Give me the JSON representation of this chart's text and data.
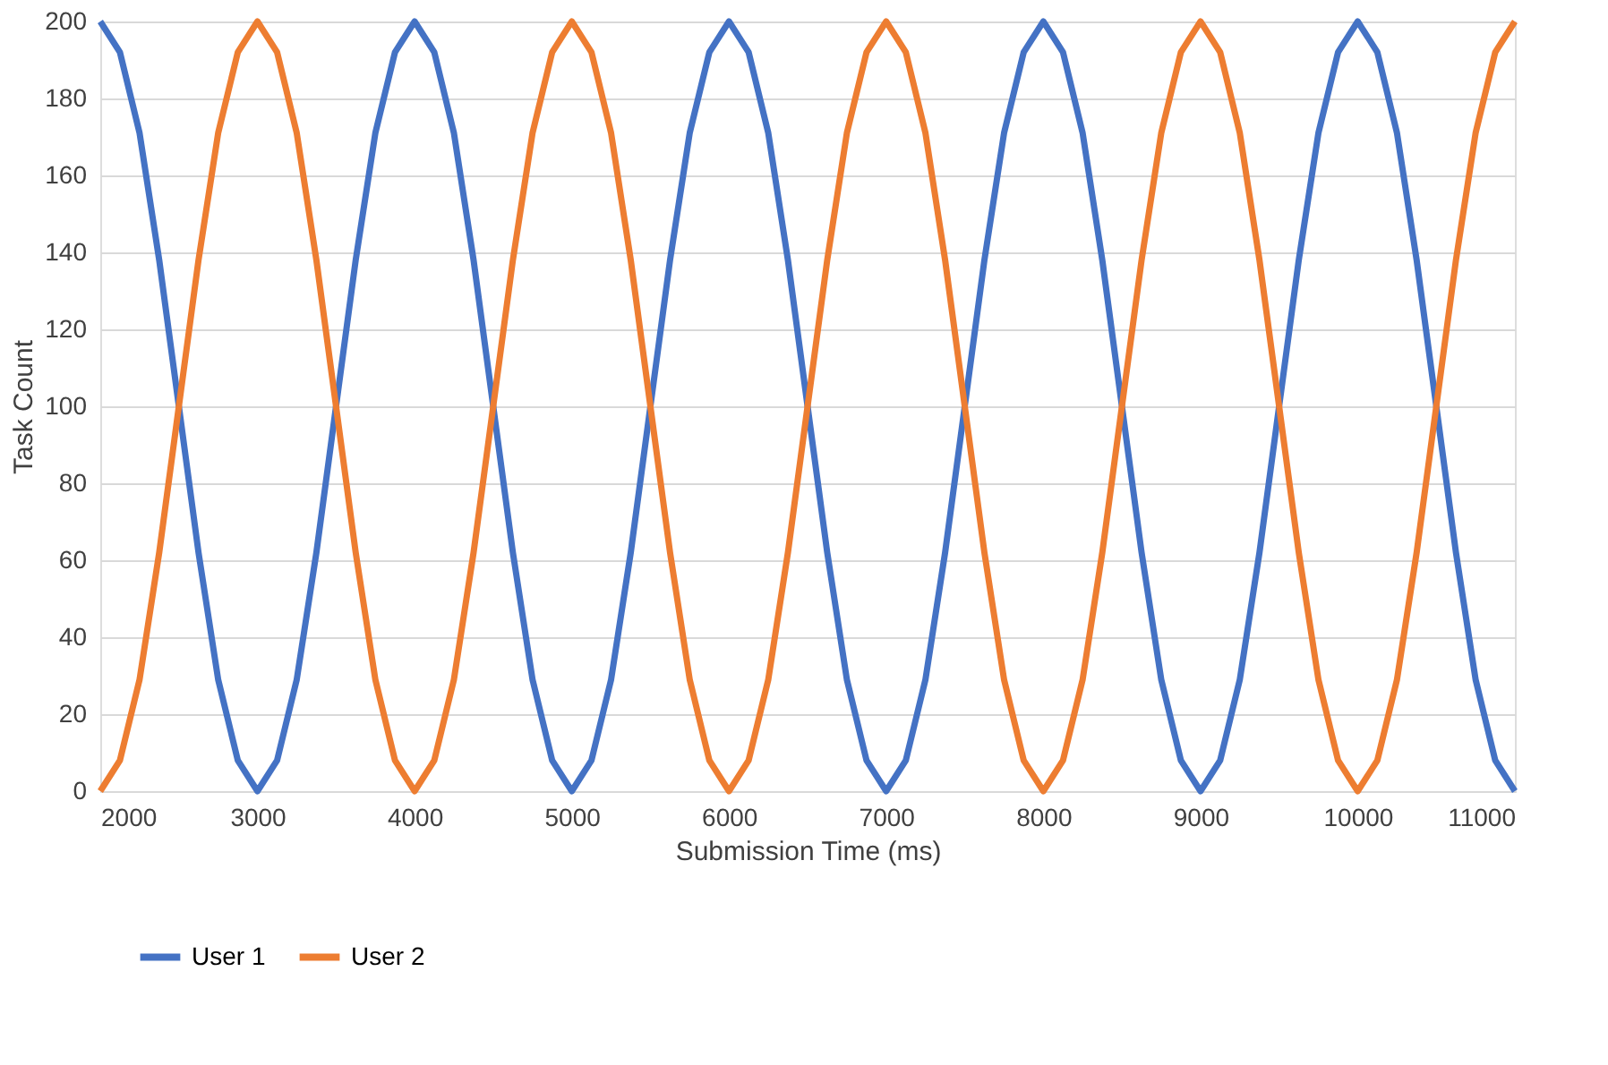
{
  "chart_data": {
    "type": "line",
    "xlabel": "Submission Time (ms)",
    "ylabel": "Task Count",
    "x": [
      2000,
      2125,
      2250,
      2375,
      2500,
      2625,
      2750,
      2875,
      3000,
      3125,
      3250,
      3375,
      3500,
      3625,
      3750,
      3875,
      4000,
      4125,
      4250,
      4375,
      4500,
      4625,
      4750,
      4875,
      5000,
      5125,
      5250,
      5375,
      5500,
      5625,
      5750,
      5875,
      6000,
      6125,
      6250,
      6375,
      6500,
      6625,
      6750,
      6875,
      7000,
      7125,
      7250,
      7375,
      7500,
      7625,
      7750,
      7875,
      8000,
      8125,
      8250,
      8375,
      8500,
      8625,
      8750,
      8875,
      9000,
      9125,
      9250,
      9375,
      9500,
      9625,
      9750,
      9875,
      10000,
      10125,
      10250,
      10375,
      10500,
      10625,
      10750,
      10875,
      11000
    ],
    "series": [
      {
        "name": "User 1",
        "color": "#4472c4",
        "values": [
          200,
          192,
          171,
          138,
          100,
          62,
          29,
          8,
          0,
          8,
          29,
          62,
          100,
          138,
          171,
          192,
          200,
          192,
          171,
          138,
          100,
          62,
          29,
          8,
          0,
          8,
          29,
          62,
          100,
          138,
          171,
          192,
          200,
          192,
          171,
          138,
          100,
          62,
          29,
          8,
          0,
          8,
          29,
          62,
          100,
          138,
          171,
          192,
          200,
          192,
          171,
          138,
          100,
          62,
          29,
          8,
          0,
          8,
          29,
          62,
          100,
          138,
          171,
          192,
          200,
          192,
          171,
          138,
          100,
          62,
          29,
          8,
          0
        ]
      },
      {
        "name": "User 2",
        "color": "#ed7d31",
        "values": [
          0,
          8,
          29,
          62,
          100,
          138,
          171,
          192,
          200,
          192,
          171,
          138,
          100,
          62,
          29,
          8,
          0,
          8,
          29,
          62,
          100,
          138,
          171,
          192,
          200,
          192,
          171,
          138,
          100,
          62,
          29,
          8,
          0,
          8,
          29,
          62,
          100,
          138,
          171,
          192,
          200,
          192,
          171,
          138,
          100,
          62,
          29,
          8,
          0,
          8,
          29,
          62,
          100,
          138,
          171,
          192,
          200,
          192,
          171,
          138,
          100,
          62,
          29,
          8,
          0,
          8,
          29,
          62,
          100,
          138,
          171,
          192,
          200
        ]
      }
    ],
    "xlim": [
      2000,
      11000
    ],
    "xticks": [
      2000,
      3000,
      4000,
      5000,
      6000,
      7000,
      8000,
      9000,
      10000,
      11000
    ],
    "ylim": [
      0,
      200
    ],
    "yticks": [
      0,
      20,
      40,
      60,
      80,
      100,
      120,
      140,
      160,
      180,
      200
    ],
    "grid": "y",
    "legend": "bottom",
    "marker": "none",
    "line_style": "solid"
  }
}
